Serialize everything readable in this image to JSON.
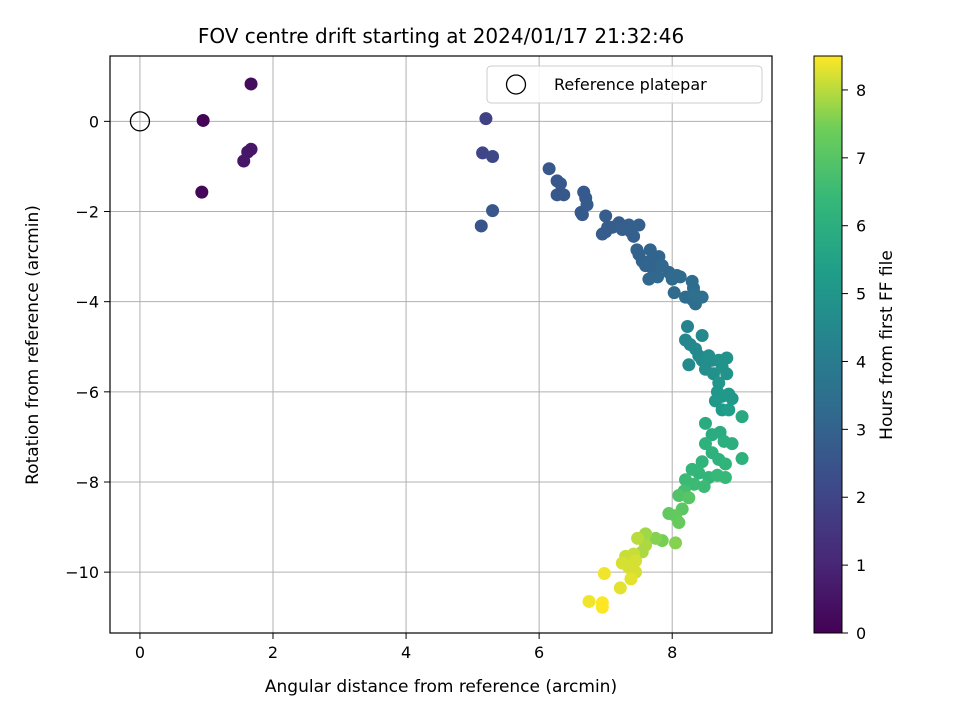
{
  "chart_data": {
    "type": "scatter",
    "title": "FOV centre drift starting at 2024/01/17 21:32:46",
    "xlabel": "Angular distance from reference (arcmin)",
    "ylabel": "Rotation from reference (arcmin)",
    "xlim": [
      -0.45,
      9.5
    ],
    "ylim": [
      -11.35,
      1.45
    ],
    "xticks": [
      0,
      2,
      4,
      6,
      8
    ],
    "yticks": [
      0,
      -2,
      -4,
      -6,
      -8,
      -10
    ],
    "xtick_labels": [
      "0",
      "2",
      "4",
      "6",
      "8"
    ],
    "ytick_labels": [
      "0",
      "−2",
      "−4",
      "−6",
      "−8",
      "−10"
    ],
    "grid": true,
    "legend": {
      "position": "top-right",
      "entries": [
        "Reference platepar"
      ]
    },
    "reference_point": {
      "x": 0,
      "y": 0
    },
    "colorbar": {
      "label": "Hours from first FF file",
      "min": 0,
      "max": 8.5,
      "ticks": [
        0,
        1,
        2,
        3,
        4,
        5,
        6,
        7,
        8
      ],
      "tick_labels": [
        "0",
        "1",
        "2",
        "3",
        "4",
        "5",
        "6",
        "7",
        "8"
      ],
      "colormap": "viridis"
    },
    "points": [
      [
        1.67,
        0.83,
        0.3
      ],
      [
        0.95,
        0.02,
        0.1
      ],
      [
        1.67,
        -0.62,
        0.6
      ],
      [
        1.62,
        -0.68,
        0.6
      ],
      [
        1.56,
        -0.88,
        0.6
      ],
      [
        0.93,
        -1.57,
        0.15
      ],
      [
        5.2,
        0.06,
        1.9
      ],
      [
        5.15,
        -0.7,
        2.0
      ],
      [
        5.3,
        -0.78,
        2.1
      ],
      [
        5.3,
        -1.98,
        2.6
      ],
      [
        5.13,
        -2.32,
        2.5
      ],
      [
        6.15,
        -1.05,
        2.6
      ],
      [
        6.27,
        -1.32,
        2.6
      ],
      [
        6.32,
        -1.38,
        2.6
      ],
      [
        6.27,
        -1.63,
        2.6
      ],
      [
        6.37,
        -1.63,
        2.6
      ],
      [
        6.67,
        -1.57,
        2.7
      ],
      [
        6.7,
        -1.7,
        2.7
      ],
      [
        6.72,
        -1.85,
        2.7
      ],
      [
        6.63,
        -2.02,
        2.7
      ],
      [
        6.65,
        -2.07,
        2.7
      ],
      [
        7.0,
        -2.1,
        2.8
      ],
      [
        7.03,
        -2.35,
        2.8
      ],
      [
        7.1,
        -2.35,
        2.8
      ],
      [
        6.95,
        -2.5,
        2.8
      ],
      [
        7.0,
        -2.45,
        2.8
      ],
      [
        7.2,
        -2.25,
        2.8
      ],
      [
        7.25,
        -2.4,
        2.9
      ],
      [
        7.35,
        -2.3,
        2.9
      ],
      [
        7.38,
        -2.45,
        2.9
      ],
      [
        7.42,
        -2.55,
        2.9
      ],
      [
        7.5,
        -2.3,
        2.9
      ],
      [
        7.47,
        -2.85,
        3.0
      ],
      [
        7.5,
        -2.95,
        3.0
      ],
      [
        7.55,
        -3.1,
        3.0
      ],
      [
        7.6,
        -3.2,
        3.1
      ],
      [
        7.67,
        -2.85,
        3.1
      ],
      [
        7.7,
        -3.05,
        3.1
      ],
      [
        7.72,
        -3.3,
        3.1
      ],
      [
        7.65,
        -3.5,
        3.2
      ],
      [
        7.78,
        -3.45,
        3.2
      ],
      [
        7.8,
        -3.0,
        3.1
      ],
      [
        7.85,
        -3.2,
        3.2
      ],
      [
        7.95,
        -3.35,
        3.2
      ],
      [
        8.0,
        -3.5,
        3.3
      ],
      [
        8.03,
        -3.8,
        3.3
      ],
      [
        8.07,
        -3.42,
        3.3
      ],
      [
        8.12,
        -3.45,
        3.3
      ],
      [
        8.2,
        -3.9,
        3.4
      ],
      [
        8.3,
        -3.95,
        3.4
      ],
      [
        8.35,
        -4.05,
        3.4
      ],
      [
        8.3,
        -3.55,
        3.4
      ],
      [
        8.32,
        -3.7,
        3.4
      ],
      [
        8.35,
        -3.85,
        3.5
      ],
      [
        8.45,
        -3.9,
        3.5
      ],
      [
        8.23,
        -4.55,
        4.3
      ],
      [
        8.2,
        -4.85,
        4.4
      ],
      [
        8.27,
        -4.95,
        4.4
      ],
      [
        8.35,
        -5.05,
        4.5
      ],
      [
        8.4,
        -5.2,
        4.5
      ],
      [
        8.45,
        -4.75,
        4.5
      ],
      [
        8.25,
        -5.4,
        4.6
      ],
      [
        8.45,
        -5.3,
        4.6
      ],
      [
        8.55,
        -5.2,
        4.7
      ],
      [
        8.6,
        -5.3,
        4.7
      ],
      [
        8.5,
        -5.5,
        4.7
      ],
      [
        8.62,
        -5.6,
        4.8
      ],
      [
        8.7,
        -5.3,
        4.8
      ],
      [
        8.75,
        -5.45,
        4.9
      ],
      [
        8.82,
        -5.25,
        4.9
      ],
      [
        8.82,
        -5.6,
        4.9
      ],
      [
        8.7,
        -5.8,
        5.0
      ],
      [
        8.68,
        -6.0,
        5.0
      ],
      [
        8.75,
        -6.1,
        5.1
      ],
      [
        8.85,
        -6.05,
        5.1
      ],
      [
        8.9,
        -6.15,
        5.1
      ],
      [
        8.65,
        -6.2,
        5.1
      ],
      [
        8.75,
        -6.4,
        5.2
      ],
      [
        8.85,
        -6.4,
        5.3
      ],
      [
        9.05,
        -6.55,
        5.8
      ],
      [
        8.5,
        -6.7,
        5.9
      ],
      [
        8.6,
        -6.95,
        5.9
      ],
      [
        8.72,
        -6.9,
        5.9
      ],
      [
        8.78,
        -7.1,
        6.0
      ],
      [
        8.9,
        -7.15,
        6.0
      ],
      [
        8.5,
        -7.15,
        6.1
      ],
      [
        8.6,
        -7.35,
        6.1
      ],
      [
        8.7,
        -7.5,
        6.1
      ],
      [
        9.05,
        -7.48,
        6.1
      ],
      [
        8.8,
        -7.6,
        6.2
      ],
      [
        8.45,
        -7.55,
        6.2
      ],
      [
        8.3,
        -7.72,
        6.3
      ],
      [
        8.4,
        -7.8,
        6.3
      ],
      [
        8.55,
        -7.9,
        6.3
      ],
      [
        8.68,
        -7.85,
        6.4
      ],
      [
        8.8,
        -7.9,
        6.4
      ],
      [
        8.2,
        -7.95,
        6.5
      ],
      [
        8.33,
        -8.05,
        6.5
      ],
      [
        8.48,
        -8.1,
        6.5
      ],
      [
        8.18,
        -8.2,
        6.7
      ],
      [
        8.1,
        -8.3,
        6.9
      ],
      [
        8.25,
        -8.35,
        7.0
      ],
      [
        8.15,
        -8.6,
        7.1
      ],
      [
        8.05,
        -8.75,
        7.2
      ],
      [
        8.1,
        -8.9,
        7.3
      ],
      [
        7.95,
        -8.7,
        7.2
      ],
      [
        7.85,
        -9.3,
        7.5
      ],
      [
        8.05,
        -9.35,
        7.6
      ],
      [
        7.75,
        -9.25,
        7.6
      ],
      [
        7.6,
        -9.15,
        7.8
      ],
      [
        7.6,
        -9.4,
        7.9
      ],
      [
        7.55,
        -9.55,
        7.9
      ],
      [
        7.48,
        -9.25,
        8.0
      ],
      [
        7.42,
        -9.6,
        8.1
      ],
      [
        7.3,
        -9.65,
        8.1
      ],
      [
        7.25,
        -9.8,
        8.2
      ],
      [
        7.35,
        -9.9,
        8.2
      ],
      [
        7.45,
        -10.0,
        8.2
      ],
      [
        7.38,
        -10.15,
        8.3
      ],
      [
        7.45,
        -9.75,
        8.2
      ],
      [
        7.22,
        -10.35,
        8.3
      ],
      [
        6.98,
        -10.03,
        8.4
      ],
      [
        6.75,
        -10.65,
        8.4
      ],
      [
        6.95,
        -10.68,
        8.5
      ],
      [
        6.95,
        -10.78,
        8.5
      ]
    ]
  }
}
